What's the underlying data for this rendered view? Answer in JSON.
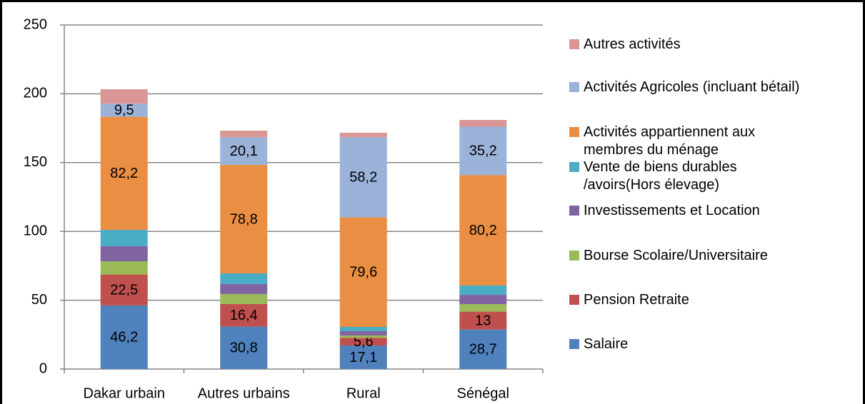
{
  "chart_data": {
    "type": "stacked_bar",
    "categories": [
      "Dakar urbain",
      "Autres urbains",
      "Rural",
      "Sénégal"
    ],
    "ylim": [
      0,
      250
    ],
    "yticks": [
      0,
      50,
      100,
      150,
      200,
      250
    ],
    "grid": true,
    "legend": "right",
    "series": [
      {
        "name": "Salaire",
        "color": "#4f81bd",
        "values": [
          46.2,
          30.8,
          17.1,
          28.7
        ],
        "value_labels": [
          "46,2",
          "30,8",
          "17,1",
          "28,7"
        ]
      },
      {
        "name": "Pension Retraite",
        "color": "#c0504d",
        "values": [
          22.5,
          16.4,
          5.6,
          13
        ],
        "value_labels": [
          "22,5",
          "16,4",
          "5,6",
          "13"
        ]
      },
      {
        "name": "Bourse Scolaire/Universitaire",
        "color": "#9bbb59",
        "values": [
          9.6,
          7.3,
          1.7,
          5.5
        ],
        "value_labels": [
          null,
          null,
          null,
          null
        ]
      },
      {
        "name": "Investissements et Location",
        "color": "#8064a2",
        "values": [
          10.9,
          7.2,
          3.1,
          6.7
        ],
        "value_labels": [
          null,
          null,
          null,
          null
        ]
      },
      {
        "name": "Vente de biens durables /avoirs(Hors élevage)",
        "color": "#4bacc6",
        "values": [
          11.9,
          7.8,
          3.1,
          6.8
        ],
        "value_labels": [
          null,
          null,
          null,
          null
        ]
      },
      {
        "name": "Activités appartiennent aux membres du ménage",
        "color": "#e98e42",
        "values": [
          82.2,
          78.8,
          79.6,
          80.2
        ],
        "value_labels": [
          "82,2",
          "78,8",
          "79,6",
          "80,2"
        ]
      },
      {
        "name": "Activités Agricoles (incluant bétail)",
        "color": "#9bb2d9",
        "values": [
          9.5,
          20.1,
          58.2,
          35.2
        ],
        "value_labels": [
          "9,5",
          "20,1",
          "58,2",
          "35,2"
        ]
      },
      {
        "name": "Autres activités",
        "color": "#d99694",
        "values": [
          10.5,
          4.8,
          3.3,
          4.9
        ],
        "value_labels": [
          null,
          null,
          null,
          null
        ]
      }
    ]
  }
}
